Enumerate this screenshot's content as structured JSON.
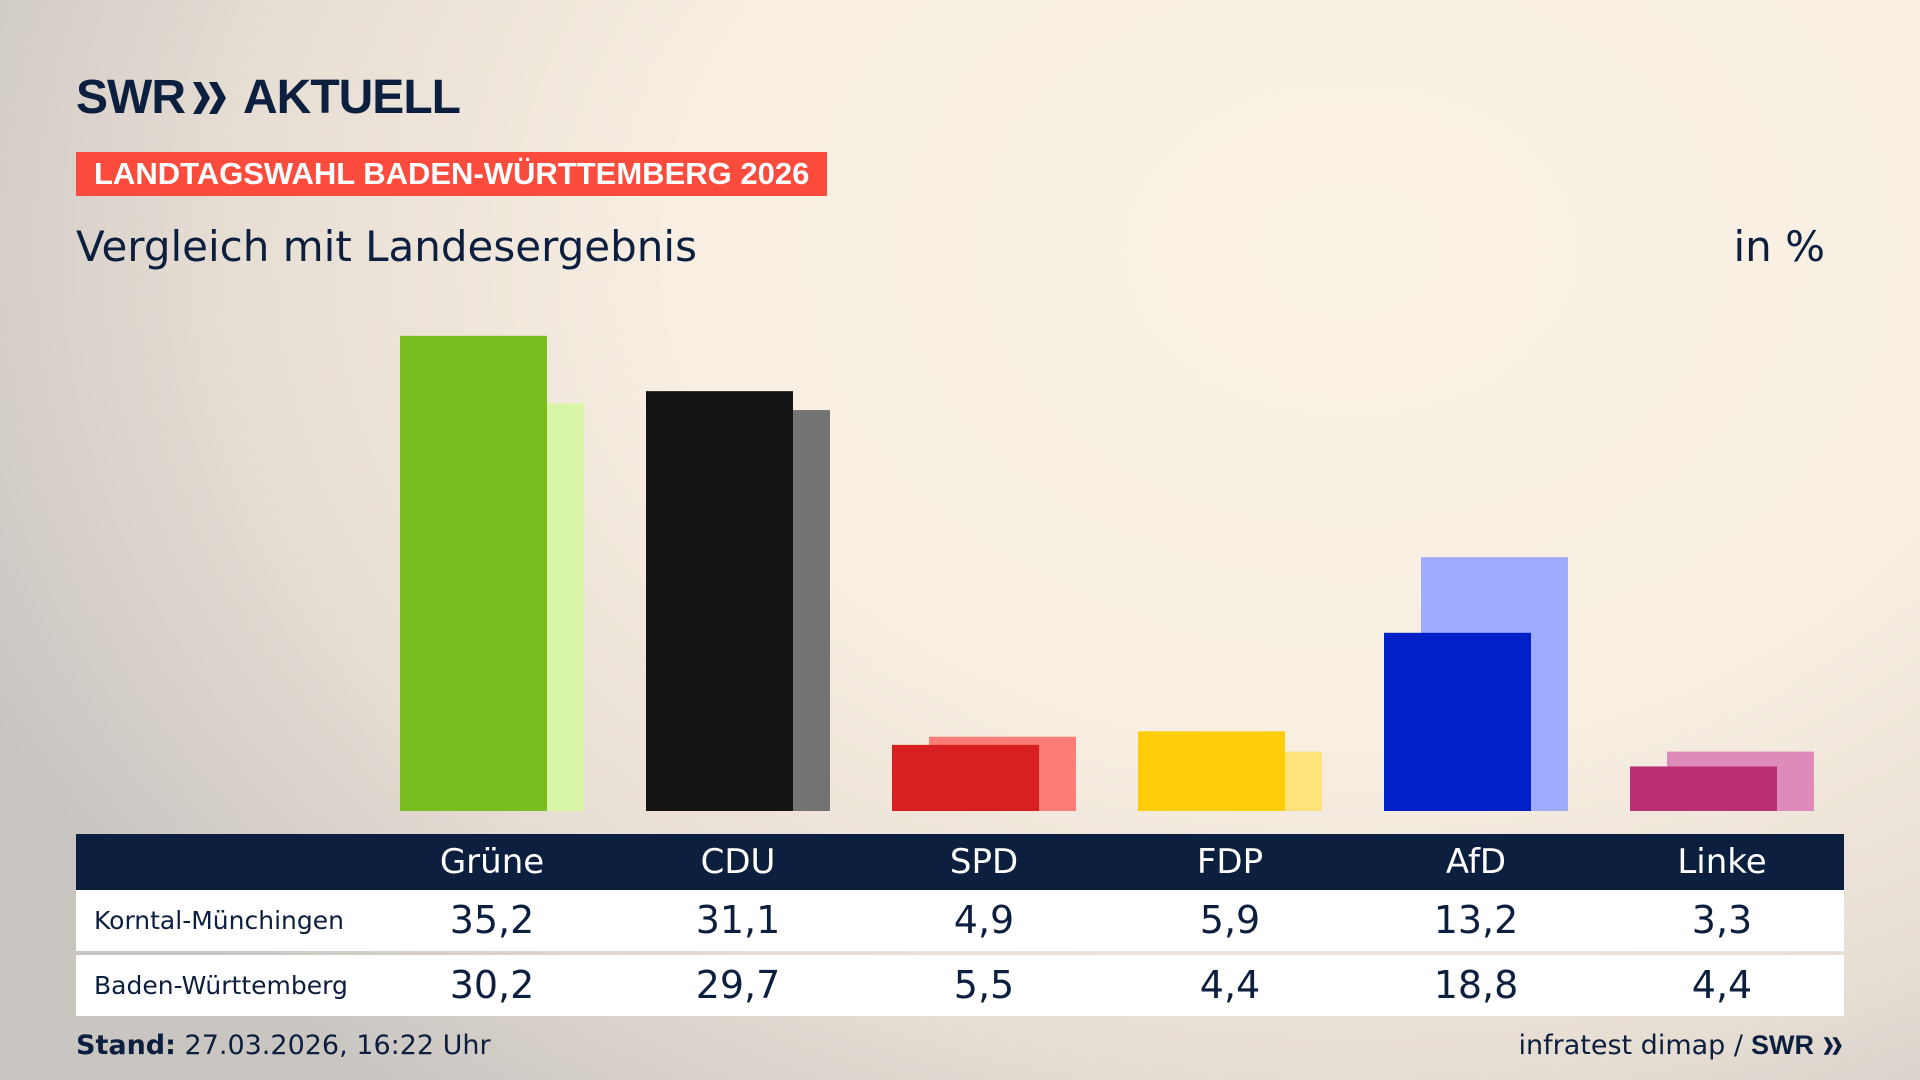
{
  "header": {
    "logo": "SWR AKTUELL",
    "logo_brand": "SWR",
    "logo_suffix": "AKTUELL",
    "banner": "LANDTAGSWAHL BADEN-WÜRTTEMBERG 2026",
    "subtitle": "Vergleich mit Landesergebnis",
    "unit": "in %"
  },
  "colors": {
    "navy": "#0c1f3f",
    "banner": "#fa4b3c"
  },
  "chart_data": {
    "type": "bar",
    "categories": [
      "Grüne",
      "CDU",
      "SPD",
      "FDP",
      "AfD",
      "Linke"
    ],
    "series": [
      {
        "name": "Korntal-Münchingen",
        "values": [
          35.2,
          31.1,
          4.9,
          5.9,
          13.2,
          3.3
        ],
        "colors": [
          "#78be1e",
          "#141414",
          "#d7201f",
          "#ffcd0a",
          "#0021c8",
          "#bb2f76"
        ]
      },
      {
        "name": "Baden-Württemberg",
        "values": [
          30.2,
          29.7,
          5.5,
          4.4,
          18.8,
          4.4
        ],
        "colors": [
          "#d9f5a8",
          "#737373",
          "#ff7d78",
          "#ffe27a",
          "#9eabff",
          "#de8bbb"
        ]
      }
    ],
    "value_labels": [
      [
        "35,2",
        "31,1",
        "4,9",
        "5,9",
        "13,2",
        "3,3"
      ],
      [
        "30,2",
        "29,7",
        "5,5",
        "4,4",
        "18,8",
        "4,4"
      ]
    ],
    "ylabel": "in %",
    "grid": false
  },
  "footer": {
    "stand_label": "Stand:",
    "stand_value": "27.03.2026, 16:22 Uhr",
    "source": "infratest dimap /",
    "source_logo": "SWR"
  }
}
